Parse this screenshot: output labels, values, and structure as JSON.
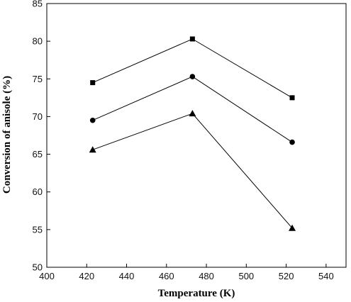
{
  "chart_data": {
    "type": "line",
    "xlabel": "Temperature (K)",
    "ylabel": "Conversion of anisole (%)",
    "xlim": [
      400,
      550
    ],
    "ylim": [
      50,
      85
    ],
    "xticks": [
      400,
      420,
      440,
      460,
      480,
      500,
      520,
      540
    ],
    "yticks": [
      50,
      55,
      60,
      65,
      70,
      75,
      80,
      85
    ],
    "x": [
      423,
      473,
      523
    ],
    "grid": false,
    "legend": "none",
    "series": [
      {
        "marker": "square",
        "color": "#000000",
        "values": [
          74.5,
          80.3,
          72.5
        ]
      },
      {
        "marker": "circle",
        "color": "#000000",
        "values": [
          69.5,
          75.3,
          66.6
        ]
      },
      {
        "marker": "triangle",
        "color": "#000000",
        "values": [
          65.6,
          70.4,
          55.2
        ]
      }
    ]
  }
}
